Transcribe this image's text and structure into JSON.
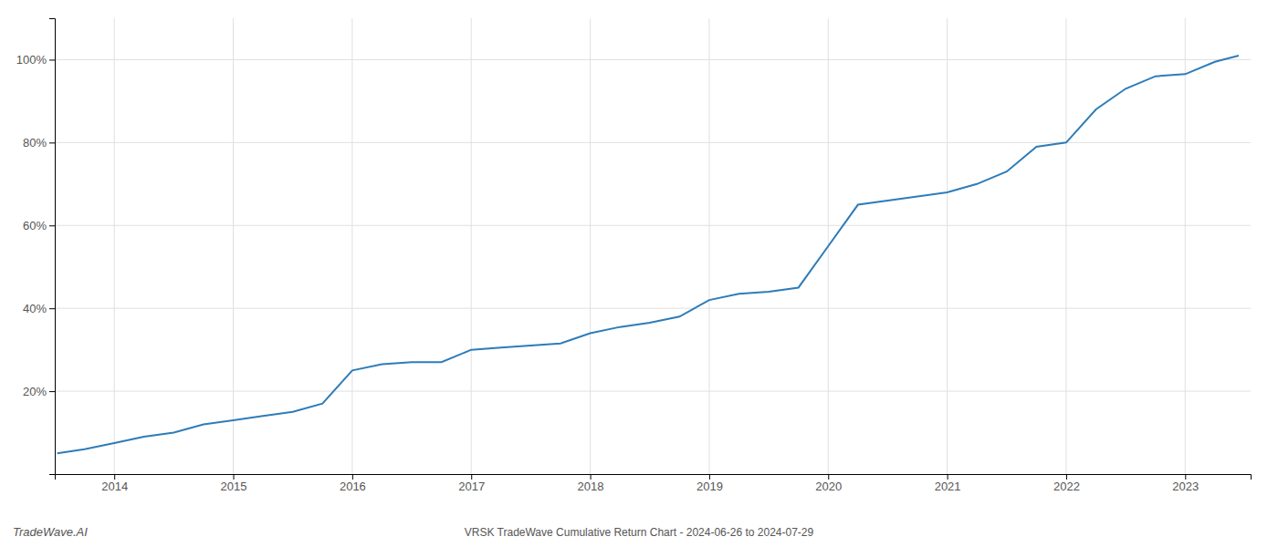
{
  "chart_data": {
    "type": "line",
    "title": "VRSK TradeWave Cumulative Return Chart - 2024-06-26 to 2024-07-29",
    "annotations": [
      "TradeWave.AI"
    ],
    "x": [
      2013.52,
      2013.75,
      2014.0,
      2014.25,
      2014.5,
      2014.75,
      2015.0,
      2015.25,
      2015.5,
      2015.75,
      2016.0,
      2016.25,
      2016.5,
      2016.75,
      2017.0,
      2017.25,
      2017.5,
      2017.75,
      2018.0,
      2018.25,
      2018.5,
      2018.75,
      2019.0,
      2019.25,
      2019.5,
      2019.75,
      2020.0,
      2020.25,
      2020.5,
      2020.75,
      2021.0,
      2021.25,
      2021.5,
      2021.75,
      2022.0,
      2022.25,
      2022.5,
      2022.75,
      2023.0,
      2023.25,
      2023.45
    ],
    "values": [
      5,
      6,
      7.5,
      9,
      10,
      12,
      13,
      14,
      15,
      17,
      25,
      26.5,
      27,
      27,
      30,
      30.5,
      31,
      31.5,
      34,
      35.5,
      36.5,
      38,
      42,
      43.5,
      44,
      45,
      55,
      65,
      66,
      67,
      68,
      70,
      73,
      79,
      80,
      88,
      93,
      96,
      96.5,
      99.5,
      101
    ],
    "color": "#2e7cb8",
    "xlim": [
      2013.5,
      2023.55
    ],
    "xticks": [
      2014,
      2015,
      2016,
      2017,
      2018,
      2019,
      2020,
      2021,
      2022,
      2023
    ],
    "ylim": [
      0,
      110
    ],
    "yticks": [
      {
        "value": 20,
        "label": "20%"
      },
      {
        "value": 40,
        "label": "40%"
      },
      {
        "value": 60,
        "label": "60%"
      },
      {
        "value": 80,
        "label": "80%"
      },
      {
        "value": 100,
        "label": "100%"
      }
    ],
    "grid": true
  }
}
